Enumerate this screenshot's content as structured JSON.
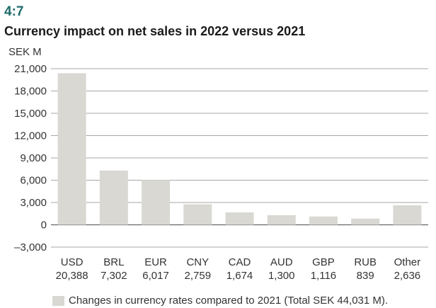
{
  "figure": {
    "number": "4:7",
    "title": "Currency impact on net sales in 2022 versus 2021"
  },
  "chart_data": {
    "type": "bar",
    "title": "Currency impact on net sales in 2022 versus 2021",
    "ylabel": "SEK M",
    "xlabel": "",
    "ylim": [
      -3000,
      21000
    ],
    "yticks": [
      -3000,
      0,
      3000,
      6000,
      9000,
      12000,
      15000,
      18000,
      21000
    ],
    "ytick_labels": [
      "–3,000",
      "0",
      "3,000",
      "6,000",
      "9,000",
      "12,000",
      "15,000",
      "18,000",
      "21,000"
    ],
    "grid": true,
    "legend_position": "bottom",
    "categories": [
      "USD",
      "BRL",
      "EUR",
      "CNY",
      "CAD",
      "AUD",
      "GBP",
      "RUB",
      "Other"
    ],
    "value_labels": [
      "20,388",
      "7,302",
      "6,017",
      "2,759",
      "1,674",
      "1,300",
      "1,116",
      "839",
      "2,636"
    ],
    "series": [
      {
        "name": "Changes in currency rates compared to 2021 (Total SEK 44,031 M).",
        "values": [
          20388,
          7302,
          6017,
          2759,
          1674,
          1300,
          1116,
          839,
          2636
        ],
        "color": "#d9d8d2"
      }
    ]
  }
}
